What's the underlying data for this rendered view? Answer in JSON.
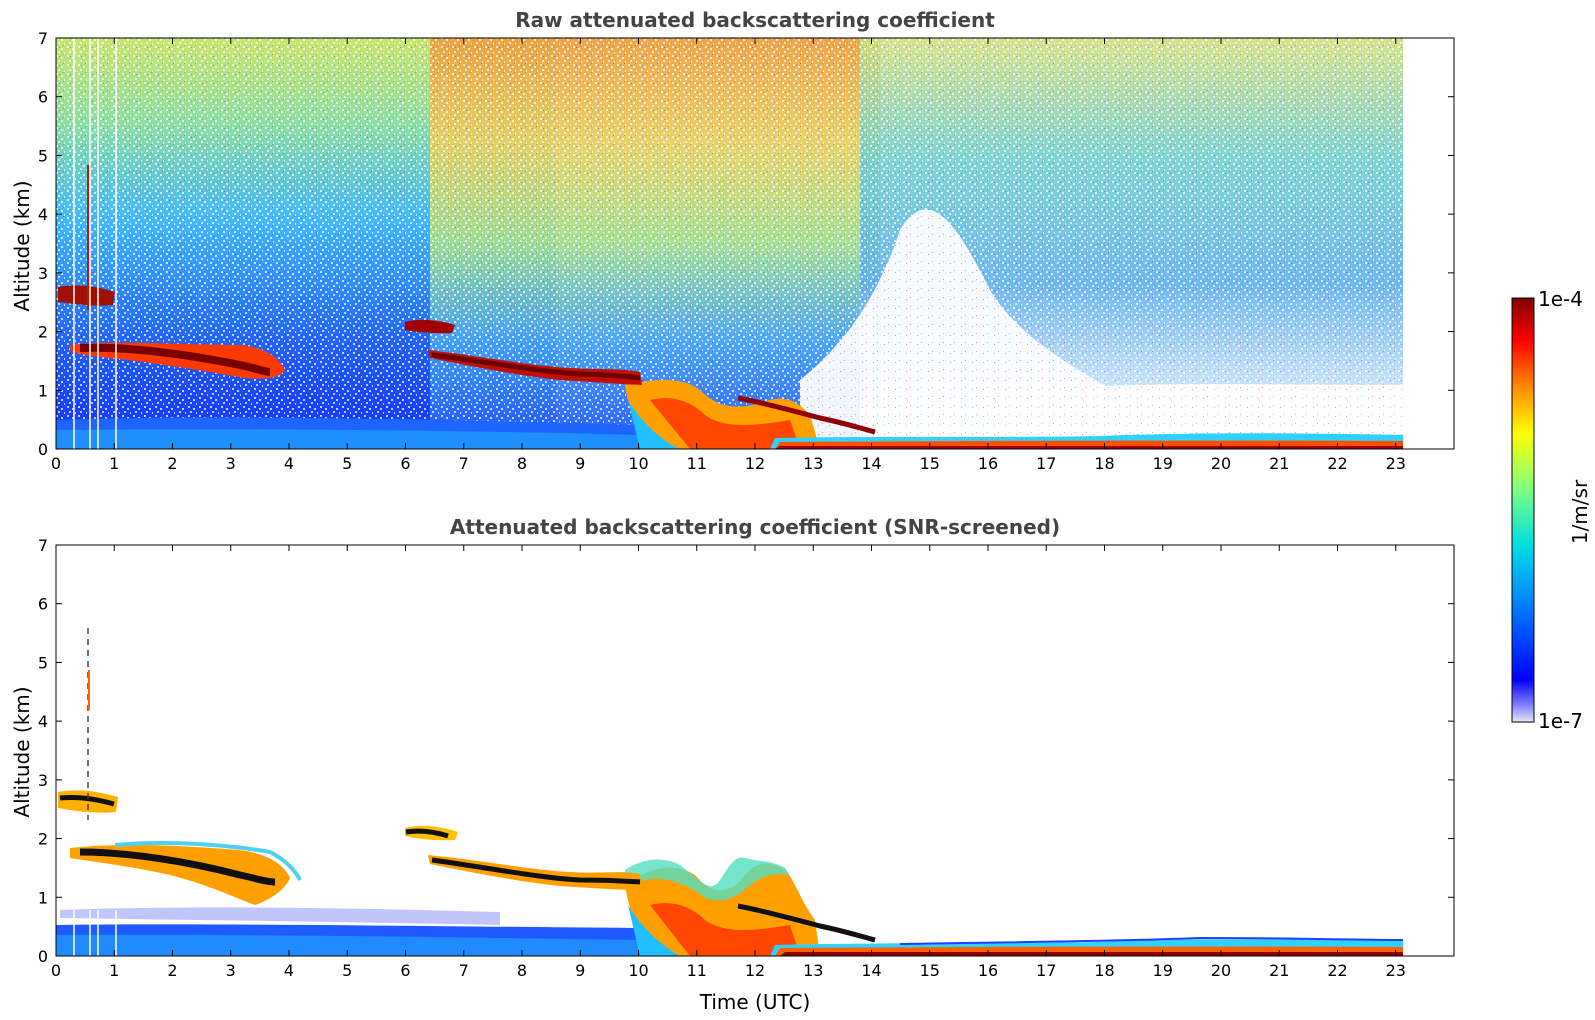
{
  "chart_data": [
    {
      "type": "heatmap",
      "title": "Raw attenuated backscattering coefficient",
      "xlabel": "",
      "ylabel": "Altitude (km)",
      "xlim": [
        0,
        24
      ],
      "ylim": [
        0,
        7
      ],
      "xticks": [
        "0",
        "1",
        "2",
        "3",
        "4",
        "5",
        "6",
        "7",
        "8",
        "9",
        "10",
        "11",
        "12",
        "13",
        "14",
        "15",
        "16",
        "17",
        "18",
        "19",
        "20",
        "21",
        "22",
        "23"
      ],
      "yticks": [
        "0",
        "1",
        "2",
        "3",
        "4",
        "5",
        "6",
        "7"
      ],
      "data_time_range": [
        0,
        23.05
      ],
      "features": [
        {
          "kind": "cloud_layer",
          "time": [
            0.0,
            1.0
          ],
          "altitude": [
            2.5,
            2.8
          ]
        },
        {
          "kind": "cloud_layer",
          "time": [
            0.2,
            3.9
          ],
          "altitude": [
            1.2,
            1.8
          ]
        },
        {
          "kind": "cloud_layer",
          "time": [
            6.0,
            6.8
          ],
          "altitude": [
            2.0,
            2.15
          ]
        },
        {
          "kind": "cloud_layer",
          "time": [
            6.4,
            10.2
          ],
          "altitude": [
            1.1,
            1.6
          ]
        },
        {
          "kind": "boundary_layer",
          "time": [
            0.0,
            10.2
          ],
          "altitude": [
            0.0,
            0.5
          ]
        },
        {
          "kind": "precipitation",
          "time": [
            10.0,
            12.6
          ],
          "altitude": [
            0.0,
            1.3
          ]
        },
        {
          "kind": "surface_layer",
          "time": [
            12.5,
            23.05
          ],
          "altitude": [
            0.0,
            0.3
          ]
        }
      ]
    },
    {
      "type": "heatmap",
      "title": "Attenuated backscattering coefficient (SNR-screened)",
      "xlabel": "Time (UTC)",
      "ylabel": "Altitude (km)",
      "xlim": [
        0,
        24
      ],
      "ylim": [
        0,
        7
      ],
      "xticks": [
        "0",
        "1",
        "2",
        "3",
        "4",
        "5",
        "6",
        "7",
        "8",
        "9",
        "10",
        "11",
        "12",
        "13",
        "14",
        "15",
        "16",
        "17",
        "18",
        "19",
        "20",
        "21",
        "22",
        "23"
      ],
      "yticks": [
        "0",
        "1",
        "2",
        "3",
        "4",
        "5",
        "6",
        "7"
      ],
      "data_time_range": [
        0,
        23.05
      ]
    }
  ],
  "colorbar": {
    "max_label": "1e-4",
    "min_label": "1e-7",
    "unit_label": "1/m/sr",
    "scale": "log",
    "range": [
      1e-07,
      0.0001
    ],
    "colormap": [
      "#e6e6fa",
      "#0000ff",
      "#00a0ff",
      "#00e0e0",
      "#80ff80",
      "#ffff00",
      "#ff8000",
      "#ff0000",
      "#800000"
    ]
  }
}
